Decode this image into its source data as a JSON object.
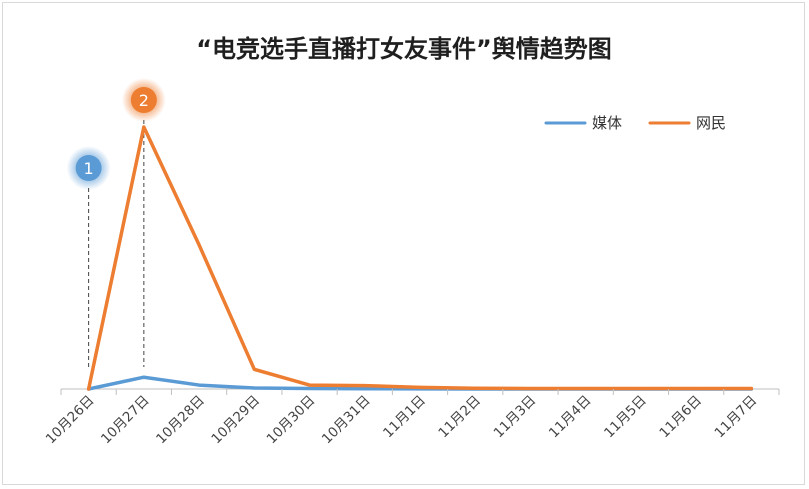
{
  "chart_data": {
    "type": "line",
    "title": "“电竞选手直播打女友事件”舆情趋势图",
    "xlabel": "",
    "ylabel": "",
    "categories": [
      "10月26日",
      "10月27日",
      "10月28日",
      "10月29日",
      "10月30日",
      "10月31日",
      "11月1日",
      "11月2日",
      "11月3日",
      "11月4日",
      "11月5日",
      "11月6日",
      "11月7日"
    ],
    "ylim": [
      0,
      100
    ],
    "grid": false,
    "legend_position": "top-right",
    "series": [
      {
        "name": "媒体",
        "color": "#5b9bd5",
        "values": [
          0,
          4.5,
          1.5,
          0.4,
          0.2,
          0.1,
          0.05,
          0,
          0,
          0,
          0,
          0,
          0
        ]
      },
      {
        "name": "网民",
        "color": "#ed7d31",
        "values": [
          0,
          100,
          55,
          7.5,
          1.5,
          1.3,
          0.6,
          0.3,
          0.2,
          0.2,
          0.2,
          0.2,
          0.2
        ]
      }
    ],
    "annotations": [
      {
        "label": "1",
        "category_index": 0,
        "color": "#5b9bd5"
      },
      {
        "label": "2",
        "category_index": 1,
        "color": "#ed7d31"
      }
    ]
  }
}
